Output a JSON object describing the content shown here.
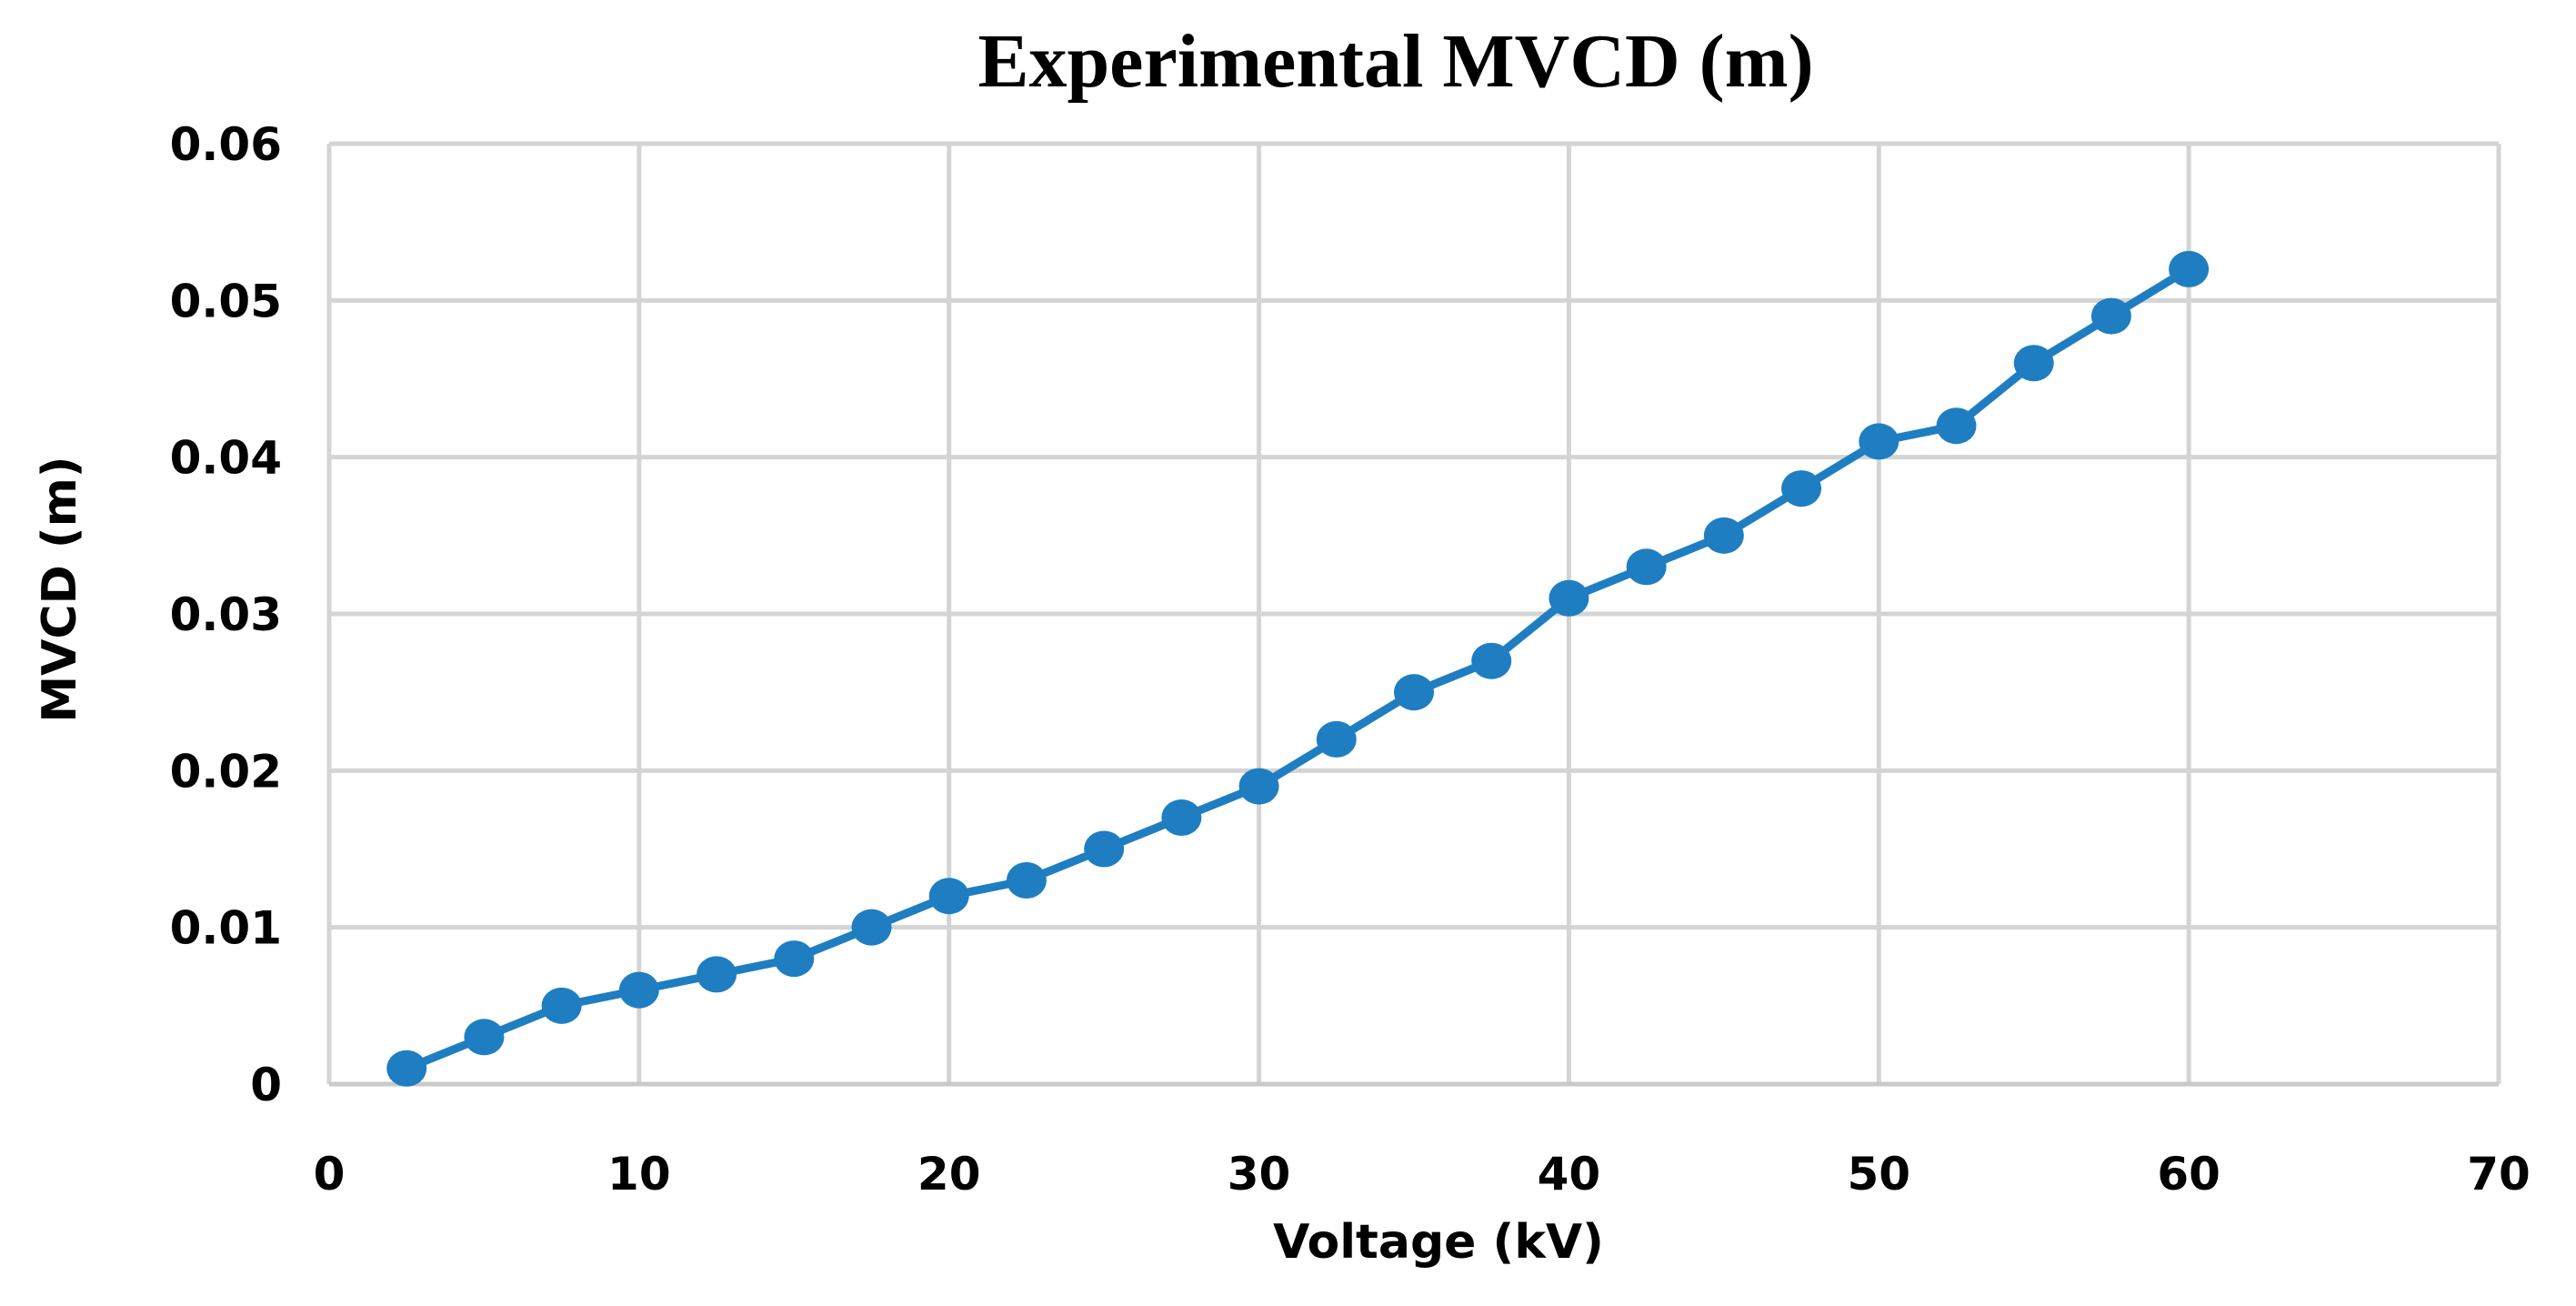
{
  "chart_data": {
    "type": "line",
    "title": "Experimental MVCD (m)",
    "xlabel": "Voltage (kV)",
    "ylabel": "MVCD (m)",
    "xlim": [
      0,
      70
    ],
    "ylim": [
      0,
      0.06
    ],
    "x_ticks": [
      "0",
      "10",
      "20",
      "30",
      "40",
      "50",
      "60",
      "70"
    ],
    "y_ticks": [
      "0",
      "0.01",
      "0.02",
      "0.03",
      "0.04",
      "0.05",
      "0.06"
    ],
    "x_tick_values": [
      0,
      10,
      20,
      30,
      40,
      50,
      60,
      70
    ],
    "y_tick_values": [
      0,
      0.01,
      0.02,
      0.03,
      0.04,
      0.05,
      0.06
    ],
    "grid": true,
    "legend": "none",
    "color": "#1f7ec1",
    "series": [
      {
        "x": [
          2.5,
          5,
          7.5,
          10,
          12.5,
          15,
          17.5,
          20,
          22.5,
          25,
          27.5,
          30,
          32.5,
          35,
          37.5,
          40,
          42.5,
          45,
          47.5,
          50,
          52.5,
          55,
          57.5,
          60
        ],
        "y": [
          0.001,
          0.003,
          0.005,
          0.006,
          0.007,
          0.008,
          0.01,
          0.012,
          0.013,
          0.015,
          0.017,
          0.019,
          0.022,
          0.025,
          0.027,
          0.031,
          0.033,
          0.035,
          0.038,
          0.041,
          0.042,
          0.046,
          0.049,
          0.052
        ]
      }
    ]
  }
}
